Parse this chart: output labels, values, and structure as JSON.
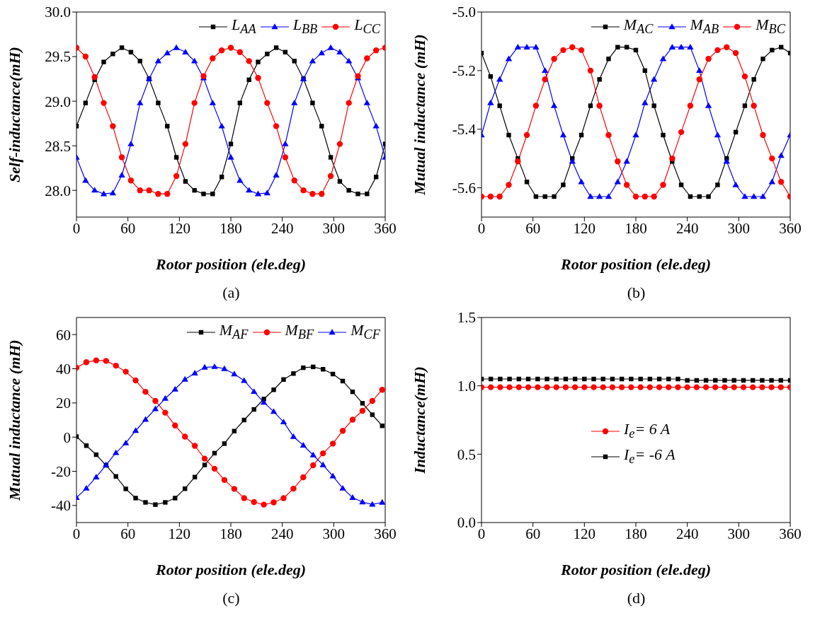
{
  "chart_data": [
    {
      "type": "line",
      "xlabel": "Rotor position (ele.deg)",
      "ylabel": "Self-inductance(mH)",
      "annotations": [
        "(a)"
      ],
      "legend": "top right",
      "x": [
        0,
        10.6,
        21.2,
        31.8,
        42.4,
        52.9,
        63.5,
        74.1,
        84.7,
        95.3,
        105.9,
        116.5,
        127.1,
        137.6,
        148.2,
        158.8,
        169.4,
        180,
        190.6,
        201.2,
        211.8,
        222.4,
        232.9,
        243.5,
        254.1,
        264.7,
        275.3,
        285.9,
        296.5,
        307.1,
        317.6,
        328.2,
        338.8,
        349.4,
        360
      ],
      "xlim": [
        0,
        360
      ],
      "xticks": [
        0,
        60,
        120,
        180,
        240,
        300,
        360
      ],
      "ylim": [
        27.7,
        30.0
      ],
      "yticks": [
        {
          "value": 28,
          "label": "28.0"
        },
        28.5,
        {
          "value": 29,
          "label": "29.0"
        },
        29.5,
        {
          "value": 30,
          "label": "30.0"
        }
      ],
      "series": [
        {
          "name": "L$_{AA}$",
          "color": "#000000",
          "marker": "square",
          "values": [
            28.72,
            28.98,
            29.24,
            29.44,
            29.53,
            29.6,
            29.55,
            29.45,
            29.25,
            28.98,
            28.72,
            28.37,
            28.1,
            28.0,
            27.96,
            27.96,
            28.15,
            28.52,
            28.98,
            29.24,
            29.44,
            29.53,
            29.6,
            29.55,
            29.45,
            29.25,
            28.98,
            28.72,
            28.37,
            28.1,
            28.0,
            27.96,
            27.96,
            28.15,
            28.52
          ]
        },
        {
          "name": "L$_{BB}$",
          "color": "#0000ff",
          "marker": "triangle",
          "values": [
            28.37,
            28.11,
            28.0,
            27.96,
            27.97,
            28.17,
            28.52,
            28.98,
            29.25,
            29.45,
            29.54,
            29.6,
            29.55,
            29.45,
            29.26,
            28.98,
            28.72,
            28.37,
            28.11,
            28.0,
            27.96,
            27.97,
            28.17,
            28.52,
            28.98,
            29.25,
            29.45,
            29.54,
            29.6,
            29.55,
            29.45,
            29.26,
            28.98,
            28.72,
            28.37
          ]
        },
        {
          "name": "L$_{CC}$",
          "color": "#ff0000",
          "marker": "circle",
          "values": [
            29.6,
            29.5,
            29.27,
            28.98,
            28.72,
            28.37,
            28.11,
            28.0,
            28.0,
            27.96,
            27.96,
            28.16,
            28.52,
            28.98,
            29.28,
            29.48,
            29.57,
            29.6,
            29.55,
            29.45,
            29.26,
            28.98,
            28.72,
            28.37,
            28.11,
            28.0,
            27.96,
            27.96,
            28.16,
            28.52,
            28.98,
            29.28,
            29.48,
            29.57,
            29.6
          ]
        }
      ]
    },
    {
      "type": "line",
      "xlabel": "Rotor position (ele.deg)",
      "ylabel": "Mutual inductance (mH)",
      "annotations": [
        "(b)"
      ],
      "legend": "top right",
      "x": [
        0,
        10.6,
        21.2,
        31.8,
        42.4,
        52.9,
        63.5,
        74.1,
        84.7,
        95.3,
        105.9,
        116.5,
        127.1,
        137.6,
        148.2,
        158.8,
        169.4,
        180,
        190.6,
        201.2,
        211.8,
        222.4,
        232.9,
        243.5,
        254.1,
        264.7,
        275.3,
        285.9,
        296.5,
        307.1,
        317.6,
        328.2,
        338.8,
        349.4,
        360
      ],
      "xlim": [
        0,
        360
      ],
      "xticks": [
        0,
        60,
        120,
        180,
        240,
        300,
        360
      ],
      "ylim": [
        -5.7,
        -5.0
      ],
      "yticks": [
        -5.6,
        -5.4,
        -5.2,
        {
          "value": -5,
          "label": "-5.0"
        }
      ],
      "series": [
        {
          "name": "M$_{AC}$",
          "color": "#000000",
          "marker": "square",
          "values": [
            -5.14,
            -5.22,
            -5.32,
            -5.42,
            -5.5,
            -5.58,
            -5.63,
            -5.63,
            -5.63,
            -5.59,
            -5.5,
            -5.42,
            -5.32,
            -5.23,
            -5.16,
            -5.12,
            -5.12,
            -5.13,
            -5.2,
            -5.32,
            -5.42,
            -5.51,
            -5.59,
            -5.63,
            -5.63,
            -5.63,
            -5.59,
            -5.5,
            -5.41,
            -5.32,
            -5.23,
            -5.16,
            -5.13,
            -5.12,
            -5.14
          ]
        },
        {
          "name": "M$_{AB}$",
          "color": "#0000ff",
          "marker": "triangle",
          "values": [
            -5.42,
            -5.31,
            -5.23,
            -5.16,
            -5.12,
            -5.12,
            -5.12,
            -5.2,
            -5.32,
            -5.42,
            -5.51,
            -5.58,
            -5.63,
            -5.63,
            -5.63,
            -5.58,
            -5.51,
            -5.42,
            -5.31,
            -5.23,
            -5.16,
            -5.12,
            -5.12,
            -5.12,
            -5.2,
            -5.32,
            -5.42,
            -5.51,
            -5.59,
            -5.63,
            -5.63,
            -5.63,
            -5.58,
            -5.49,
            -5.42
          ]
        },
        {
          "name": "M$_{BC}$",
          "color": "#ff0000",
          "marker": "circle",
          "values": [
            -5.63,
            -5.63,
            -5.63,
            -5.59,
            -5.51,
            -5.42,
            -5.32,
            -5.23,
            -5.16,
            -5.13,
            -5.12,
            -5.13,
            -5.2,
            -5.32,
            -5.42,
            -5.51,
            -5.59,
            -5.63,
            -5.63,
            -5.63,
            -5.59,
            -5.5,
            -5.41,
            -5.32,
            -5.23,
            -5.16,
            -5.13,
            -5.12,
            -5.14,
            -5.22,
            -5.32,
            -5.42,
            -5.5,
            -5.58,
            -5.63
          ]
        }
      ]
    },
    {
      "type": "line",
      "xlabel": "Rotor position (ele.deg)",
      "ylabel": "Mutual inductance (mH)",
      "annotations": [
        "(c)"
      ],
      "legend": "top right",
      "x": [
        0,
        11.5,
        23,
        34.5,
        46,
        57.5,
        69,
        80.5,
        92,
        103.5,
        115,
        126.5,
        138,
        149.5,
        161,
        172.5,
        184,
        195.5,
        207,
        218.5,
        230,
        241.5,
        253,
        264.5,
        276,
        287.5,
        299,
        310.5,
        322,
        333.5,
        345,
        356.5
      ],
      "xlim": [
        0,
        360
      ],
      "xticks": [
        0,
        60,
        120,
        180,
        240,
        300,
        360
      ],
      "ylim": [
        -50,
        70
      ],
      "yticks": [
        -40,
        -20,
        0,
        20,
        40,
        60
      ],
      "series": [
        {
          "name": "M$_{AF}$",
          "color": "#000000",
          "marker": "square",
          "values": [
            0.3,
            -5,
            -10.3,
            -16.5,
            -23,
            -30.3,
            -35.7,
            -38.2,
            -39.5,
            -38.2,
            -35.7,
            -30.2,
            -23.4,
            -16.3,
            -9.4,
            -3.8,
            3.5,
            10,
            16.2,
            22.3,
            27.7,
            33.7,
            37.2,
            40.6,
            41.1,
            39.7,
            36.9,
            32.8,
            26.5,
            19.8,
            13.1,
            6.6
          ]
        },
        {
          "name": "M$_{BF}$",
          "color": "#ff0000",
          "marker": "circle",
          "values": [
            40.6,
            43.8,
            44.9,
            44.6,
            41.8,
            38.3,
            33.2,
            26.5,
            21.2,
            14.3,
            6.8,
            0.3,
            -5.1,
            -12.6,
            -18.5,
            -25.1,
            -30.3,
            -35.7,
            -38,
            -39.5,
            -38.2,
            -35.7,
            -30.2,
            -23.5,
            -16.5,
            -9.5,
            -3.8,
            3.7,
            10.2,
            15.4,
            21.2,
            27.7
          ]
        },
        {
          "name": "M$_{CF}$",
          "color": "#0000ff",
          "marker": "triangle",
          "values": [
            -35.4,
            -30,
            -23.4,
            -16.3,
            -9.2,
            -3.5,
            3.8,
            10.3,
            16.5,
            22.6,
            28,
            33.8,
            37.4,
            40.8,
            41.2,
            40,
            36.9,
            33.1,
            26.6,
            20.3,
            14.9,
            8.8,
            0.3,
            -4.8,
            -10.5,
            -16.3,
            -22.8,
            -30,
            -35.4,
            -38,
            -39.4,
            -38.2
          ]
        }
      ]
    },
    {
      "type": "line",
      "xlabel": "Rotor position (ele.deg)",
      "ylabel": "Inductance(mH)",
      "annotations": [
        "(d)"
      ],
      "legend": "center",
      "x": [
        0,
        10.9,
        21.8,
        32.7,
        43.6,
        54.5,
        65.5,
        76.4,
        87.3,
        98.2,
        109.1,
        120,
        130.9,
        141.8,
        152.7,
        163.6,
        174.5,
        185.5,
        196.4,
        207.3,
        218.2,
        229.1,
        240,
        250.9,
        261.8,
        272.7,
        283.6,
        294.5,
        305.5,
        316.4,
        327.3,
        338.2,
        349.1,
        360
      ],
      "xlim": [
        0,
        360
      ],
      "xticks": [
        0,
        60,
        120,
        180,
        240,
        300,
        360
      ],
      "ylim": [
        0,
        1.5
      ],
      "yticks": [
        {
          "value": 0,
          "label": "0.0"
        },
        0.5,
        {
          "value": 1,
          "label": "1.0"
        },
        1.5
      ],
      "series": [
        {
          "name": "I$_{e}$= 6 A",
          "color": "#ff0000",
          "marker": "circle",
          "values": [
            0.99,
            0.99,
            0.99,
            0.99,
            0.99,
            0.99,
            0.99,
            0.99,
            0.99,
            0.99,
            0.99,
            0.99,
            0.99,
            0.99,
            0.99,
            0.99,
            0.99,
            0.99,
            0.99,
            0.99,
            0.99,
            0.99,
            0.99,
            0.99,
            0.99,
            0.99,
            0.99,
            0.99,
            0.99,
            0.99,
            0.99,
            0.99,
            0.99,
            0.99
          ]
        },
        {
          "name": "I$_{e}$= -6 A",
          "color": "#000000",
          "marker": "square",
          "values": [
            1.05,
            1.05,
            1.05,
            1.05,
            1.05,
            1.05,
            1.05,
            1.05,
            1.05,
            1.05,
            1.05,
            1.05,
            1.05,
            1.05,
            1.05,
            1.05,
            1.05,
            1.05,
            1.05,
            1.05,
            1.05,
            1.05,
            1.04,
            1.04,
            1.04,
            1.04,
            1.04,
            1.04,
            1.04,
            1.04,
            1.04,
            1.04,
            1.04,
            1.04
          ]
        }
      ]
    }
  ]
}
